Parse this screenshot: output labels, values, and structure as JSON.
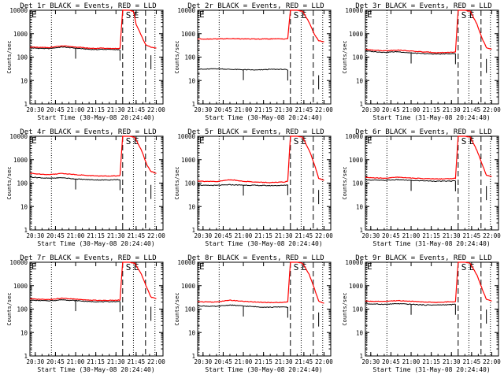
{
  "chart_data": {
    "type": "line",
    "layout": "3x3 grid of small multiples",
    "ylabel": "Counts/sec",
    "yscale": "log",
    "ylim": [
      1,
      10000
    ],
    "y_ticks": [
      "1",
      "10",
      "100",
      "1000",
      "10000"
    ],
    "x_ticks": [
      "20:30",
      "20:45",
      "21:00",
      "21:15",
      "21:30",
      "21:45",
      "22:00"
    ],
    "x_tick_minutes": [
      0,
      15,
      30,
      45,
      60,
      75,
      90
    ],
    "xlim_minutes": [
      -4,
      95
    ],
    "x_origin_time": "20:30",
    "event_labels": [
      "S",
      "E"
    ],
    "dotted_marker_minutes": [
      -3,
      12,
      73,
      89
    ],
    "dashed_marker_minutes": [
      65,
      82
    ],
    "series_names": [
      "Events (BLACK)",
      "LLD (RED)"
    ],
    "panels": [
      {
        "title": "Det 1r BLACK = Events, RED = LLD",
        "xlabel": "Start Time (30-May-08 20:24:40)",
        "black": [
          [
            -4,
            250
          ],
          [
            0,
            240
          ],
          [
            10,
            230
          ],
          [
            20,
            270
          ],
          [
            30,
            240
          ],
          [
            40,
            215
          ],
          [
            45,
            210
          ],
          [
            50,
            215
          ],
          [
            60,
            210
          ],
          [
            63,
            200
          ]
        ],
        "red": [
          [
            -4,
            270
          ],
          [
            0,
            260
          ],
          [
            10,
            255
          ],
          [
            20,
            300
          ],
          [
            30,
            270
          ],
          [
            40,
            240
          ],
          [
            45,
            235
          ],
          [
            50,
            240
          ],
          [
            60,
            230
          ],
          [
            63,
            230
          ],
          [
            65,
            10000
          ],
          [
            70,
            10000
          ],
          [
            73,
            9000
          ],
          [
            75,
            2500
          ],
          [
            79,
            800
          ],
          [
            82,
            350
          ],
          [
            86,
            260
          ],
          [
            90,
            240
          ]
        ]
      },
      {
        "title": "Det 2r BLACK = Events, RED = LLD",
        "xlabel": "Start Time (30-May-08 20:24:40)",
        "black": [
          [
            -4,
            32
          ],
          [
            0,
            30
          ],
          [
            10,
            32
          ],
          [
            20,
            30
          ],
          [
            30,
            29
          ],
          [
            40,
            28
          ],
          [
            50,
            30
          ],
          [
            60,
            30
          ],
          [
            63,
            28
          ]
        ],
        "red": [
          [
            -4,
            600
          ],
          [
            0,
            590
          ],
          [
            10,
            600
          ],
          [
            20,
            610
          ],
          [
            30,
            600
          ],
          [
            40,
            590
          ],
          [
            50,
            600
          ],
          [
            60,
            600
          ],
          [
            63,
            620
          ],
          [
            65,
            10000
          ],
          [
            70,
            10000
          ],
          [
            74,
            9000
          ],
          [
            79,
            3000
          ],
          [
            83,
            900
          ],
          [
            86,
            500
          ],
          [
            90,
            450
          ]
        ]
      },
      {
        "title": "Det 3r BLACK = Events, RED = LLD",
        "xlabel": "Start Time (31-May-08 20:24:40)",
        "black": [
          [
            -4,
            180
          ],
          [
            0,
            175
          ],
          [
            10,
            160
          ],
          [
            20,
            170
          ],
          [
            30,
            150
          ],
          [
            40,
            140
          ],
          [
            50,
            135
          ],
          [
            60,
            140
          ],
          [
            63,
            140
          ]
        ],
        "red": [
          [
            -4,
            210
          ],
          [
            0,
            205
          ],
          [
            10,
            185
          ],
          [
            20,
            200
          ],
          [
            30,
            180
          ],
          [
            40,
            165
          ],
          [
            50,
            155
          ],
          [
            60,
            160
          ],
          [
            63,
            165
          ],
          [
            65,
            10000
          ],
          [
            70,
            10000
          ],
          [
            74,
            9000
          ],
          [
            79,
            2500
          ],
          [
            83,
            600
          ],
          [
            86,
            250
          ],
          [
            90,
            220
          ]
        ]
      },
      {
        "title": "Det 4r BLACK = Events, RED = LLD",
        "xlabel": "Start Time (30-May-08 20:24:40)",
        "black": [
          [
            -4,
            180
          ],
          [
            0,
            175
          ],
          [
            10,
            160
          ],
          [
            20,
            170
          ],
          [
            30,
            150
          ],
          [
            40,
            140
          ],
          [
            50,
            135
          ],
          [
            60,
            140
          ],
          [
            63,
            140
          ]
        ],
        "red": [
          [
            -4,
            260
          ],
          [
            0,
            250
          ],
          [
            10,
            230
          ],
          [
            20,
            260
          ],
          [
            30,
            230
          ],
          [
            40,
            210
          ],
          [
            50,
            200
          ],
          [
            60,
            205
          ],
          [
            63,
            210
          ],
          [
            65,
            10000
          ],
          [
            70,
            10000
          ],
          [
            74,
            9000
          ],
          [
            79,
            2500
          ],
          [
            83,
            600
          ],
          [
            86,
            320
          ],
          [
            90,
            260
          ]
        ]
      },
      {
        "title": "Det 5r BLACK = Events, RED = LLD",
        "xlabel": "Start Time (30-May-08 20:24:40)",
        "black": [
          [
            -4,
            85
          ],
          [
            0,
            80
          ],
          [
            10,
            80
          ],
          [
            20,
            85
          ],
          [
            30,
            82
          ],
          [
            40,
            80
          ],
          [
            50,
            78
          ],
          [
            60,
            80
          ],
          [
            63,
            85
          ]
        ],
        "red": [
          [
            -4,
            125
          ],
          [
            0,
            120
          ],
          [
            10,
            115
          ],
          [
            20,
            140
          ],
          [
            30,
            120
          ],
          [
            40,
            110
          ],
          [
            50,
            105
          ],
          [
            60,
            110
          ],
          [
            63,
            120
          ],
          [
            65,
            10000
          ],
          [
            70,
            10000
          ],
          [
            74,
            9000
          ],
          [
            79,
            2500
          ],
          [
            83,
            600
          ],
          [
            86,
            160
          ],
          [
            90,
            130
          ]
        ]
      },
      {
        "title": "Det 6r BLACK = Events, RED = LLD",
        "xlabel": "Start Time (31-May-08 20:24:40)",
        "black": [
          [
            -4,
            140
          ],
          [
            0,
            135
          ],
          [
            10,
            130
          ],
          [
            20,
            140
          ],
          [
            30,
            130
          ],
          [
            40,
            125
          ],
          [
            50,
            120
          ],
          [
            60,
            122
          ],
          [
            63,
            125
          ]
        ],
        "red": [
          [
            -4,
            175
          ],
          [
            0,
            170
          ],
          [
            10,
            160
          ],
          [
            20,
            180
          ],
          [
            30,
            165
          ],
          [
            40,
            155
          ],
          [
            50,
            150
          ],
          [
            60,
            155
          ],
          [
            63,
            160
          ],
          [
            65,
            10000
          ],
          [
            70,
            10000
          ],
          [
            74,
            9000
          ],
          [
            79,
            2500
          ],
          [
            83,
            600
          ],
          [
            86,
            220
          ],
          [
            90,
            190
          ]
        ]
      },
      {
        "title": "Det 7r BLACK = Events, RED = LLD",
        "xlabel": "Start Time (30-May-08 20:24:40)",
        "black": [
          [
            -4,
            240
          ],
          [
            0,
            235
          ],
          [
            10,
            225
          ],
          [
            20,
            250
          ],
          [
            30,
            230
          ],
          [
            40,
            210
          ],
          [
            50,
            205
          ],
          [
            60,
            210
          ],
          [
            63,
            210
          ]
        ],
        "red": [
          [
            -4,
            270
          ],
          [
            0,
            265
          ],
          [
            10,
            255
          ],
          [
            20,
            290
          ],
          [
            30,
            265
          ],
          [
            40,
            240
          ],
          [
            50,
            235
          ],
          [
            60,
            240
          ],
          [
            63,
            245
          ],
          [
            65,
            10000
          ],
          [
            70,
            10000
          ],
          [
            74,
            9000
          ],
          [
            79,
            3000
          ],
          [
            83,
            800
          ],
          [
            86,
            330
          ],
          [
            90,
            280
          ]
        ]
      },
      {
        "title": "Det 8r BLACK = Events, RED = LLD",
        "xlabel": "Start Time (30-May-08 20:24:40)",
        "black": [
          [
            -4,
            140
          ],
          [
            0,
            135
          ],
          [
            10,
            130
          ],
          [
            20,
            150
          ],
          [
            30,
            135
          ],
          [
            40,
            125
          ],
          [
            50,
            120
          ],
          [
            60,
            125
          ],
          [
            63,
            120
          ]
        ],
        "red": [
          [
            -4,
            210
          ],
          [
            0,
            205
          ],
          [
            10,
            200
          ],
          [
            20,
            240
          ],
          [
            30,
            215
          ],
          [
            40,
            200
          ],
          [
            50,
            190
          ],
          [
            60,
            195
          ],
          [
            63,
            200
          ],
          [
            65,
            10000
          ],
          [
            70,
            10000
          ],
          [
            74,
            9000
          ],
          [
            79,
            3000
          ],
          [
            83,
            700
          ],
          [
            86,
            220
          ],
          [
            90,
            180
          ]
        ]
      },
      {
        "title": "Det 9r BLACK = Events, RED = LLD",
        "xlabel": "Start Time (31-May-08 20:24:40)",
        "black": [
          [
            -4,
            170
          ],
          [
            0,
            165
          ],
          [
            10,
            160
          ],
          [
            20,
            170
          ],
          [
            30,
            160
          ],
          [
            40,
            150
          ],
          [
            50,
            150
          ],
          [
            60,
            155
          ],
          [
            63,
            160
          ]
        ],
        "red": [
          [
            -4,
            220
          ],
          [
            0,
            215
          ],
          [
            10,
            210
          ],
          [
            20,
            230
          ],
          [
            30,
            215
          ],
          [
            40,
            200
          ],
          [
            50,
            195
          ],
          [
            60,
            205
          ],
          [
            63,
            210
          ],
          [
            65,
            10000
          ],
          [
            70,
            10000
          ],
          [
            74,
            9000
          ],
          [
            79,
            2800
          ],
          [
            83,
            700
          ],
          [
            86,
            260
          ],
          [
            90,
            220
          ]
        ]
      }
    ],
    "colors": {
      "events": "#000000",
      "lld": "#ff0000"
    }
  }
}
